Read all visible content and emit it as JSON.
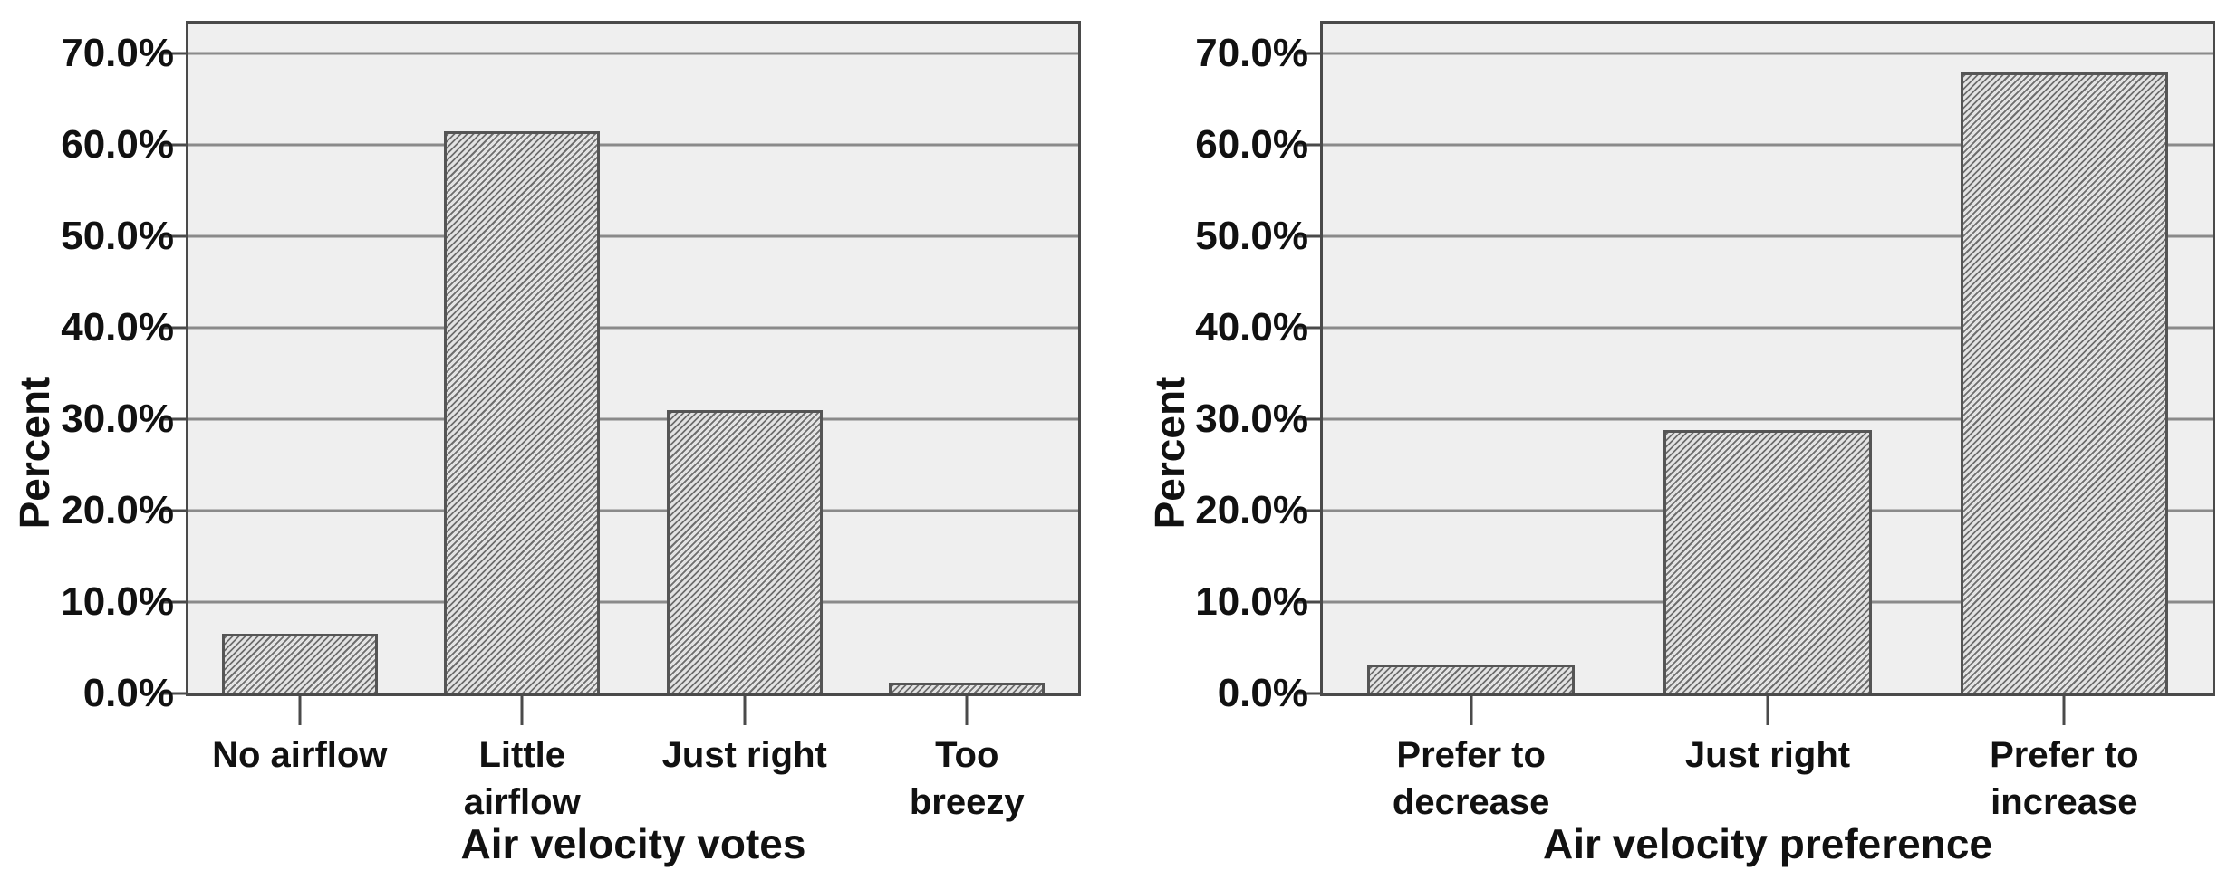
{
  "style": {
    "plot_background": "#efefef",
    "gridline_color": "#8a8a8a",
    "axis_color": "#4a4a4a",
    "bar_stripe_color": "#6e6e6e",
    "bar_background_color": "#e3e3e3",
    "bar_border_color": "#555555",
    "text_color": "#111111",
    "page_background": "#ffffff"
  },
  "chart_data": [
    {
      "type": "bar",
      "title": "",
      "xlabel": "Air velocity votes",
      "ylabel": "Percent",
      "categories": [
        "No airflow",
        "Little airflow",
        "Just right",
        "Too breezy"
      ],
      "category_lines": [
        [
          "No airflow"
        ],
        [
          "Little",
          "airflow"
        ],
        [
          "Just right"
        ],
        [
          "Too",
          "breezy"
        ]
      ],
      "values": [
        6.5,
        61.5,
        31.0,
        1.2
      ],
      "unit": "percent",
      "ylim": [
        0,
        73.3
      ],
      "ytick_values": [
        0,
        10,
        20,
        30,
        40,
        50,
        60,
        70
      ],
      "ytick_labels": [
        "0.0%",
        "10.0%",
        "20.0%",
        "30.0%",
        "40.0%",
        "50.0%",
        "60.0%",
        "70.0%"
      ],
      "grid": "horizontal",
      "legend": "none",
      "bar_fill": "diagonal-hatch"
    },
    {
      "type": "bar",
      "title": "",
      "xlabel": "Air velocity preference",
      "ylabel": "Percent",
      "categories": [
        "Prefer to decrease",
        "Just right",
        "Prefer to increase"
      ],
      "category_lines": [
        [
          "Prefer to",
          "decrease"
        ],
        [
          "Just right"
        ],
        [
          "Prefer to",
          "increase"
        ]
      ],
      "values": [
        3.2,
        28.8,
        68.0
      ],
      "unit": "percent",
      "ylim": [
        0,
        73.3
      ],
      "ytick_values": [
        0,
        10,
        20,
        30,
        40,
        50,
        60,
        70
      ],
      "ytick_labels": [
        "0.0%",
        "10.0%",
        "20.0%",
        "30.0%",
        "40.0%",
        "50.0%",
        "60.0%",
        "70.0%"
      ],
      "grid": "horizontal",
      "legend": "none",
      "bar_fill": "diagonal-hatch"
    }
  ]
}
